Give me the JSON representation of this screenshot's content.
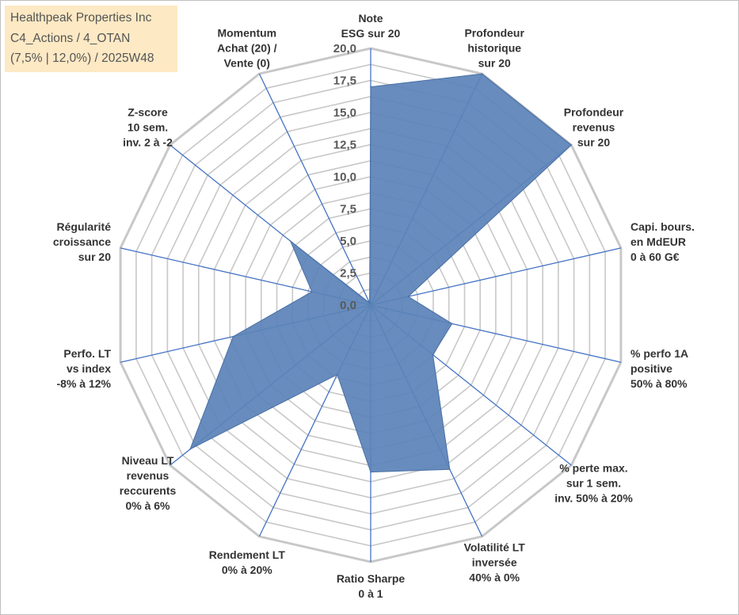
{
  "info_box": {
    "line1": "Healthpeak Properties Inc",
    "line2": "C4_Actions / 4_OTAN",
    "line3": "(7,5% | 12,0%) / 2025W48"
  },
  "chart_data": {
    "type": "radar",
    "title": "",
    "rmin": 0,
    "rmax": 20,
    "tick_values": [
      0,
      2.5,
      5,
      7.5,
      10,
      12.5,
      15,
      17.5,
      20
    ],
    "tick_labels": [
      "0,0",
      "2,5",
      "5,0",
      "7,5",
      "10,0",
      "12,5",
      "15,0",
      "17,5",
      "20,0"
    ],
    "axes": [
      {
        "label": [
          "Note",
          "ESG sur 20"
        ],
        "value": 17.0
      },
      {
        "label": [
          "Profondeur",
          "historique",
          "sur 20"
        ],
        "value": 20.0
      },
      {
        "label": [
          "Profondeur",
          "revenus",
          "sur 20"
        ],
        "value": 20.0
      },
      {
        "label": [
          "Capi. bours.",
          "en MdEUR",
          "0 à 60 G€"
        ],
        "value": 3.0
      },
      {
        "label": [
          "% perfo 1A",
          "positive",
          "50% à 80%"
        ],
        "value": 6.5
      },
      {
        "label": [
          "% perte max.",
          "sur 1 sem.",
          "inv. 50% à 20%"
        ],
        "value": 6.2
      },
      {
        "label": [
          "Volatilité LT",
          "inversée",
          "40% à 0%"
        ],
        "value": 14.2
      },
      {
        "label": [
          "Ratio Sharpe",
          "0 à 1"
        ],
        "value": 13.0
      },
      {
        "label": [
          "Rendement LT",
          "0% à 20%"
        ],
        "value": 6.0
      },
      {
        "label": [
          "Niveau LT",
          "revenus",
          "reccurents",
          "0% à 6%"
        ],
        "value": 18.0
      },
      {
        "label": [
          "Perfo. LT",
          "vs index",
          "-8% à 12%"
        ],
        "value": 11.0
      },
      {
        "label": [
          "Régularité",
          "croissance",
          "sur 20"
        ],
        "value": 4.7
      },
      {
        "label": [
          "Z-score",
          "10 sem.",
          "inv. 2 à -2"
        ],
        "value": 8.0
      },
      {
        "label": [
          "Momentum",
          "Achat (20) /",
          "Vente (0)"
        ],
        "value": 0.2
      }
    ],
    "colors": {
      "fill": "#5b83b8",
      "stroke": "#4a6fa5",
      "grid": "#c8c8c8",
      "axis": "#4472c4"
    }
  }
}
